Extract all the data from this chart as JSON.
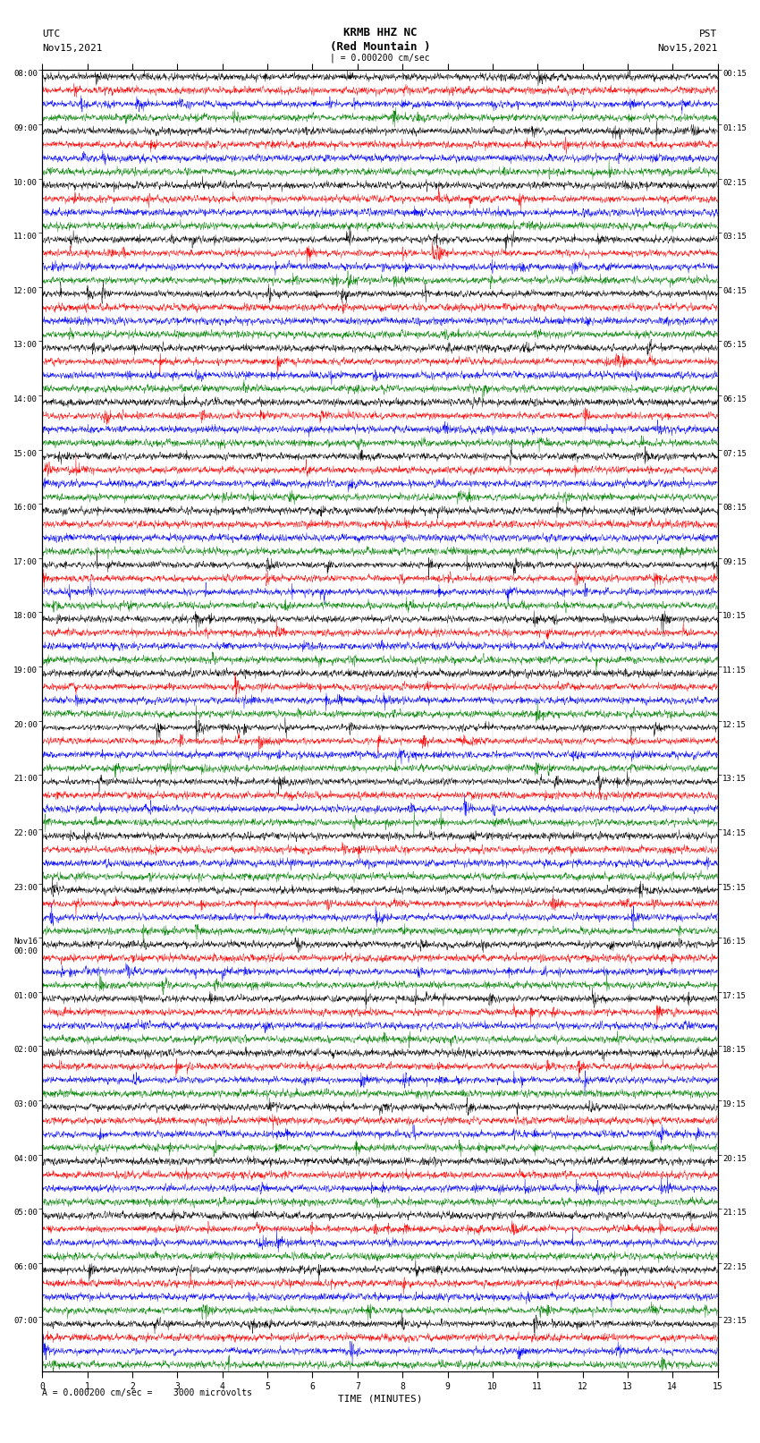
{
  "title_line1": "KRMB HHZ NC",
  "title_line2": "(Red Mountain )",
  "bottom_label": "= 0.000200 cm/sec =    3000 microvolts",
  "xlabel": "TIME (MINUTES)",
  "utc_label": "UTC",
  "utc_date": "Nov15,2021",
  "pst_label": "PST",
  "pst_date": "Nov15,2021",
  "scale_text": "= 0.000200 cm/sec",
  "left_times": [
    "08:00",
    "09:00",
    "10:00",
    "11:00",
    "12:00",
    "13:00",
    "14:00",
    "15:00",
    "16:00",
    "17:00",
    "18:00",
    "19:00",
    "20:00",
    "21:00",
    "22:00",
    "23:00",
    "Nov16\n00:00",
    "01:00",
    "02:00",
    "03:00",
    "04:00",
    "05:00",
    "06:00",
    "07:00"
  ],
  "right_times": [
    "00:15",
    "01:15",
    "02:15",
    "03:15",
    "04:15",
    "05:15",
    "06:15",
    "07:15",
    "08:15",
    "09:15",
    "10:15",
    "11:15",
    "12:15",
    "13:15",
    "14:15",
    "15:15",
    "16:15",
    "17:15",
    "18:15",
    "19:15",
    "20:15",
    "21:15",
    "22:15",
    "23:15"
  ],
  "colors": [
    "black",
    "red",
    "blue",
    "green"
  ],
  "n_hours": 24,
  "traces_per_hour": 4,
  "minutes": 15,
  "fig_width": 8.5,
  "fig_height": 16.13,
  "background_color": "white",
  "trace_amp": 0.38,
  "seed": 42,
  "n_samples": 2700,
  "linewidth": 0.3
}
